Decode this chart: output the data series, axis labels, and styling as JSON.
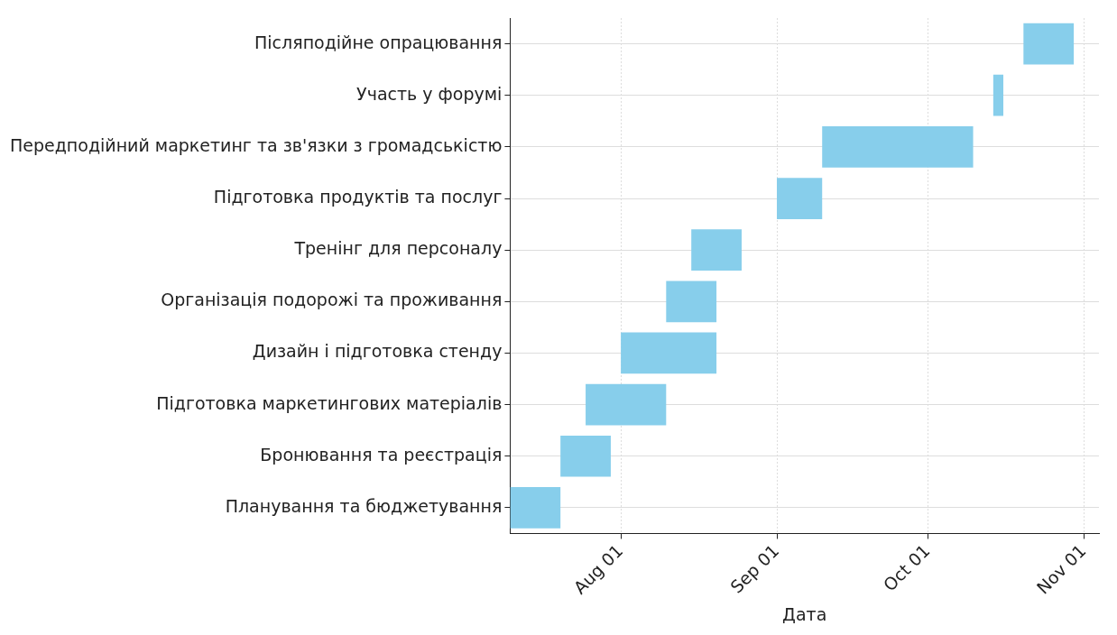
{
  "chart_data": {
    "type": "bar",
    "orientation": "horizontal",
    "xlabel": "Дата",
    "categories": [
      "Післяподійне опрацювання",
      "Участь у форумі",
      "Передподійний маркетинг та зв'язки з громадськістю",
      "Підготовка продуктів та послуг",
      "Тренінг для персоналу",
      "Організація подорожі та проживання",
      "Дизайн і підготовка стенду",
      "Підготовка маркетингових матеріалів",
      "Бронювання та реєстрація",
      "Планування та бюджетування"
    ],
    "base": [
      11615,
      11609,
      11575,
      11566,
      11549,
      11544,
      11535,
      11528,
      11523,
      11513
    ],
    "values": [
      10,
      2,
      30,
      9,
      10,
      10,
      19,
      16,
      10,
      10
    ],
    "color": "#87ceeb",
    "xlim": [
      "--07-10",
      "--11-04"
    ],
    "xticks": [
      {
        "value": "--08-01",
        "label": "Aug 01"
      },
      {
        "value": "--09-01",
        "label": "Sep 01"
      },
      {
        "value": "--10-01",
        "label": "Oct 01"
      },
      {
        "value": "--11-01",
        "label": "Nov 01"
      }
    ],
    "grid": true
  }
}
